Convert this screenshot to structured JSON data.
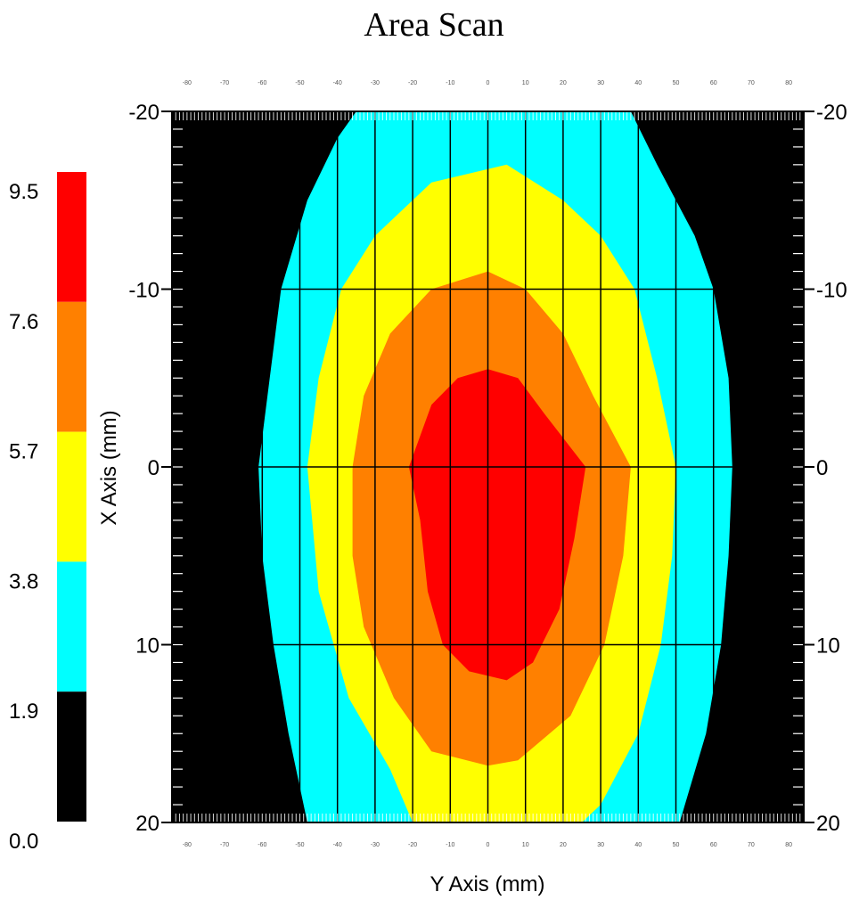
{
  "chart_data": {
    "type": "heatmap",
    "title": "Area Scan",
    "xlabel": "Y Axis (mm)",
    "ylabel": "X Axis (mm)",
    "y_axis_ticks": [
      "-20",
      "-10",
      "0",
      "10",
      "20"
    ],
    "y_axis_ticks_right": [
      "-20",
      "-10",
      "0",
      "10",
      "20"
    ],
    "x_axis_ticks_top": [
      "-80",
      "-70",
      "-60",
      "-50",
      "-40",
      "-30",
      "-20",
      "-10",
      "0",
      "10",
      "20",
      "30",
      "40",
      "50",
      "60",
      "70",
      "80"
    ],
    "x_axis_ticks_bottom": [
      "-80",
      "-70",
      "-60",
      "-50",
      "-40",
      "-30",
      "-20",
      "-10",
      "0",
      "10",
      "20",
      "30",
      "40",
      "50",
      "60",
      "70",
      "80"
    ],
    "xlim": [
      -84,
      84
    ],
    "ylim": [
      -20,
      20
    ],
    "grid": true,
    "grid_x": [
      -80,
      -70,
      -60,
      -50,
      -40,
      -30,
      -20,
      -10,
      0,
      10,
      20,
      30,
      40,
      50,
      60,
      70,
      80
    ],
    "grid_y": [
      -10,
      0,
      10
    ],
    "legend": {
      "labels": [
        "9.5",
        "7.6",
        "5.7",
        "3.8",
        "1.9",
        "0.0"
      ],
      "bands": [
        {
          "from": 7.6,
          "to": 9.5,
          "color": "#ff0000"
        },
        {
          "from": 5.7,
          "to": 7.6,
          "color": "#ff8000"
        },
        {
          "from": 3.8,
          "to": 5.7,
          "color": "#ffff00"
        },
        {
          "from": 1.9,
          "to": 3.8,
          "color": "#00ffff"
        },
        {
          "from": 0.0,
          "to": 1.9,
          "color": "#000000"
        }
      ]
    },
    "contours": [
      {
        "color": "#00ffff",
        "points": [
          [
            -35,
            -20
          ],
          [
            38,
            -20
          ],
          [
            45,
            -17
          ],
          [
            55,
            -13
          ],
          [
            60,
            -10
          ],
          [
            64,
            -5
          ],
          [
            65,
            0
          ],
          [
            64,
            5
          ],
          [
            62,
            10
          ],
          [
            58,
            15
          ],
          [
            51,
            20
          ],
          [
            -48,
            20
          ],
          [
            -53,
            15
          ],
          [
            -57,
            10
          ],
          [
            -60,
            5
          ],
          [
            -61,
            0
          ],
          [
            -58,
            -5
          ],
          [
            -55,
            -10
          ],
          [
            -48,
            -15
          ],
          [
            -40,
            -18.5
          ]
        ]
      },
      {
        "color": "#ffff00",
        "points": [
          [
            5,
            -17
          ],
          [
            20,
            -15
          ],
          [
            30,
            -13
          ],
          [
            39,
            -10
          ],
          [
            45,
            -5
          ],
          [
            50,
            0
          ],
          [
            49,
            5
          ],
          [
            46,
            10
          ],
          [
            40,
            15
          ],
          [
            30,
            19
          ],
          [
            25,
            20
          ],
          [
            -20,
            20
          ],
          [
            -26,
            17
          ],
          [
            -37,
            13
          ],
          [
            -45,
            7
          ],
          [
            -48,
            0
          ],
          [
            -45,
            -5
          ],
          [
            -39,
            -10
          ],
          [
            -30,
            -13
          ],
          [
            -15,
            -16
          ]
        ]
      },
      {
        "color": "#ff8000",
        "points": [
          [
            0,
            -11
          ],
          [
            10,
            -10
          ],
          [
            20,
            -7.5
          ],
          [
            28,
            -4
          ],
          [
            38,
            0
          ],
          [
            36,
            5
          ],
          [
            31,
            10
          ],
          [
            22,
            14
          ],
          [
            8,
            16.5
          ],
          [
            0,
            16.8
          ],
          [
            -15,
            16
          ],
          [
            -25,
            13
          ],
          [
            -33,
            9
          ],
          [
            -36,
            5
          ],
          [
            -36,
            0
          ],
          [
            -33,
            -4
          ],
          [
            -26,
            -7.5
          ],
          [
            -15,
            -10
          ]
        ]
      },
      {
        "color": "#ff0000",
        "points": [
          [
            0,
            -5.5
          ],
          [
            8,
            -5
          ],
          [
            15,
            -3
          ],
          [
            26,
            0
          ],
          [
            23,
            4
          ],
          [
            19,
            8
          ],
          [
            12,
            11
          ],
          [
            5,
            12
          ],
          [
            -5,
            11.5
          ],
          [
            -12,
            10
          ],
          [
            -16,
            7
          ],
          [
            -18,
            3
          ],
          [
            -21,
            0
          ],
          [
            -15,
            -3.5
          ],
          [
            -8,
            -5
          ]
        ]
      }
    ]
  }
}
